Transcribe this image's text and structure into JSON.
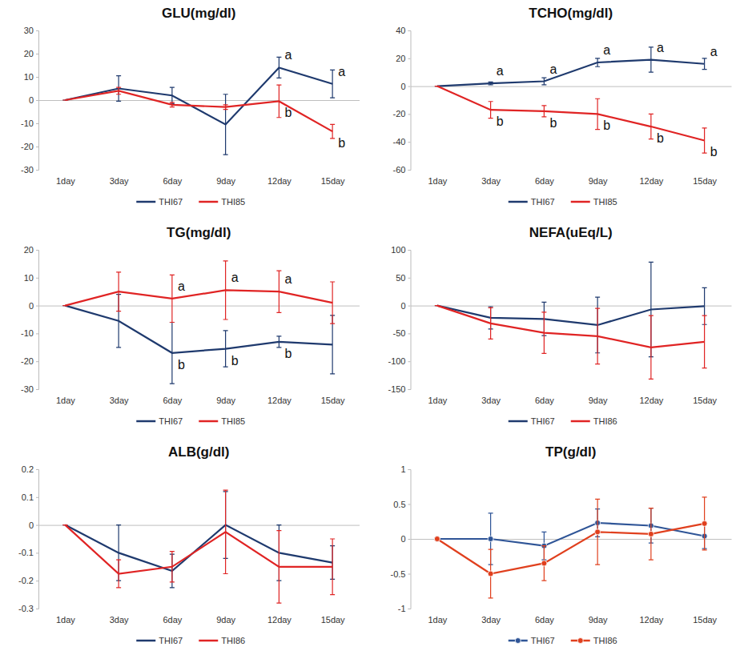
{
  "chart_data": [
    {
      "type": "line",
      "title": "GLU(mg/dl)",
      "categories": [
        "1day",
        "3day",
        "6day",
        "9day",
        "12day",
        "15day"
      ],
      "ylim": [
        -30,
        30
      ],
      "yticks": [
        -30,
        -20,
        -10,
        0,
        10,
        20,
        30
      ],
      "grid": false,
      "legend": "bottom",
      "series": [
        {
          "name": "THI67",
          "color": "#1f3a6e",
          "values": [
            0,
            5,
            2,
            -10.5,
            14,
            7
          ],
          "errors": [
            0,
            5.5,
            3.5,
            13,
            4.5,
            6
          ]
        },
        {
          "name": "THI85",
          "color": "#e02424",
          "values": [
            0,
            4,
            -2,
            -3,
            -0.5,
            -13.5
          ],
          "errors": [
            0,
            1.5,
            1,
            1,
            7,
            3
          ]
        }
      ],
      "annotations": [
        {
          "text": "a",
          "category": "12day",
          "series": "THI67",
          "position": "above"
        },
        {
          "text": "a",
          "category": "15day",
          "series": "THI67",
          "position": "above"
        },
        {
          "text": "b",
          "category": "12day",
          "series": "THI85",
          "position": "below"
        },
        {
          "text": "b",
          "category": "15day",
          "series": "THI85",
          "position": "below"
        }
      ]
    },
    {
      "type": "line",
      "title": "TCHO(mg/dl)",
      "categories": [
        "1day",
        "3day",
        "6day",
        "9day",
        "12day",
        "15day"
      ],
      "ylim": [
        -60,
        40
      ],
      "yticks": [
        -60,
        -40,
        -20,
        0,
        20,
        40
      ],
      "grid": false,
      "legend": "bottom",
      "series": [
        {
          "name": "THI67",
          "color": "#1f3a6e",
          "values": [
            0,
            2,
            3.5,
            17,
            19,
            16
          ],
          "errors": [
            0,
            1,
            2.5,
            3,
            9,
            4
          ]
        },
        {
          "name": "THI85",
          "color": "#e02424",
          "values": [
            0,
            -17,
            -18,
            -20,
            -29,
            -39
          ],
          "errors": [
            0,
            6,
            4,
            11,
            9,
            9
          ]
        }
      ],
      "annotations": [
        {
          "text": "a",
          "category": "3day",
          "series": "THI67",
          "position": "above"
        },
        {
          "text": "a",
          "category": "6day",
          "series": "THI67",
          "position": "above"
        },
        {
          "text": "a",
          "category": "9day",
          "series": "THI67",
          "position": "above"
        },
        {
          "text": "a",
          "category": "12day",
          "series": "THI67",
          "position": "above"
        },
        {
          "text": "a",
          "category": "15day",
          "series": "THI67",
          "position": "above"
        },
        {
          "text": "b",
          "category": "3day",
          "series": "THI85",
          "position": "below"
        },
        {
          "text": "b",
          "category": "6day",
          "series": "THI85",
          "position": "below"
        },
        {
          "text": "b",
          "category": "9day",
          "series": "THI85",
          "position": "below"
        },
        {
          "text": "b",
          "category": "12day",
          "series": "THI85",
          "position": "below"
        },
        {
          "text": "b",
          "category": "15day",
          "series": "THI85",
          "position": "below"
        }
      ]
    },
    {
      "type": "line",
      "title": "TG(mg/dl)",
      "categories": [
        "1day",
        "3day",
        "6day",
        "9day",
        "12day",
        "15day"
      ],
      "ylim": [
        -30,
        20
      ],
      "yticks": [
        -30,
        -20,
        -10,
        0,
        10,
        20
      ],
      "grid": false,
      "legend": "bottom",
      "series": [
        {
          "name": "THI67",
          "color": "#1f3a6e",
          "values": [
            0,
            -5.5,
            -17,
            -15.5,
            -13,
            -14
          ],
          "errors": [
            0,
            9.5,
            11,
            6.5,
            2,
            10.5
          ]
        },
        {
          "name": "THI85",
          "color": "#e02424",
          "values": [
            0,
            5,
            2.5,
            5.5,
            5,
            1
          ],
          "errors": [
            0,
            7,
            8.5,
            10.5,
            7.5,
            7.5
          ]
        }
      ],
      "annotations": [
        {
          "text": "a",
          "category": "6day",
          "series": "THI85",
          "position": "above"
        },
        {
          "text": "a",
          "category": "9day",
          "series": "THI85",
          "position": "above"
        },
        {
          "text": "a",
          "category": "12day",
          "series": "THI85",
          "position": "above"
        },
        {
          "text": "b",
          "category": "6day",
          "series": "THI67",
          "position": "below"
        },
        {
          "text": "b",
          "category": "9day",
          "series": "THI67",
          "position": "below"
        },
        {
          "text": "b",
          "category": "12day",
          "series": "THI67",
          "position": "below"
        }
      ]
    },
    {
      "type": "line",
      "title": "NEFA(uEq/L)",
      "categories": [
        "1day",
        "3day",
        "6day",
        "9day",
        "12day",
        "15day"
      ],
      "ylim": [
        -150,
        100
      ],
      "yticks": [
        -150,
        -100,
        -50,
        0,
        50,
        100
      ],
      "grid": false,
      "legend": "bottom",
      "series": [
        {
          "name": "THI67",
          "color": "#1f3a6e",
          "values": [
            0,
            -22,
            -24,
            -35,
            -7,
            -1
          ],
          "errors": [
            0,
            20,
            30,
            50,
            85,
            33
          ]
        },
        {
          "name": "THI86",
          "color": "#e02424",
          "values": [
            0,
            -32,
            -49,
            -55,
            -75,
            -65
          ],
          "errors": [
            0,
            28,
            37,
            50,
            57,
            47
          ]
        }
      ]
    },
    {
      "type": "line",
      "title": "ALB(g/dl)",
      "categories": [
        "1day",
        "3day",
        "6day",
        "9day",
        "12day",
        "15day"
      ],
      "ylim": [
        -0.3,
        0.2
      ],
      "yticks": [
        -0.3,
        -0.2,
        -0.1,
        0,
        0.1,
        0.2
      ],
      "grid": false,
      "legend": "bottom",
      "series": [
        {
          "name": "THI67",
          "color": "#1f3a6e",
          "values": [
            0,
            -0.1,
            -0.165,
            0,
            -0.1,
            -0.135
          ],
          "errors": [
            0,
            0.1,
            0.06,
            0.12,
            0.1,
            0.06
          ]
        },
        {
          "name": "THI86",
          "color": "#e02424",
          "values": [
            0,
            -0.175,
            -0.15,
            -0.025,
            -0.15,
            -0.15
          ],
          "errors": [
            0,
            0.05,
            0.055,
            0.15,
            0.13,
            0.1
          ]
        }
      ]
    },
    {
      "type": "line",
      "title": "TP(g/dl)",
      "categories": [
        "1day",
        "3day",
        "6day",
        "9day",
        "12day",
        "15day"
      ],
      "ylim": [
        -1,
        1
      ],
      "yticks": [
        -1,
        -0.5,
        0,
        0.5,
        1
      ],
      "grid": false,
      "legend": "bottom",
      "series": [
        {
          "name": "THI67",
          "color": "#2f5597",
          "marker": "circle",
          "values": [
            0,
            0,
            -0.1,
            0.23,
            0.19,
            0.04
          ],
          "errors": [
            0,
            0.37,
            0.2,
            0.2,
            0.25,
            0.18
          ]
        },
        {
          "name": "THI86",
          "color": "#e0401e",
          "marker": "circle",
          "values": [
            0,
            -0.5,
            -0.35,
            0.1,
            0.07,
            0.22
          ],
          "errors": [
            0,
            0.35,
            0.25,
            0.47,
            0.37,
            0.38
          ]
        }
      ]
    }
  ]
}
